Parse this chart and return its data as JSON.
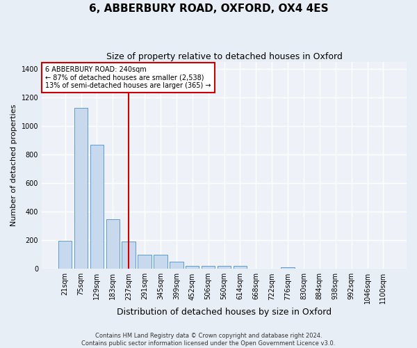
{
  "title": "6, ABBERBURY ROAD, OXFORD, OX4 4ES",
  "subtitle": "Size of property relative to detached houses in Oxford",
  "xlabel": "Distribution of detached houses by size in Oxford",
  "ylabel": "Number of detached properties",
  "categories": [
    "21sqm",
    "75sqm",
    "129sqm",
    "183sqm",
    "237sqm",
    "291sqm",
    "345sqm",
    "399sqm",
    "452sqm",
    "506sqm",
    "560sqm",
    "614sqm",
    "668sqm",
    "722sqm",
    "776sqm",
    "830sqm",
    "884sqm",
    "938sqm",
    "992sqm",
    "1046sqm",
    "1100sqm"
  ],
  "values": [
    195,
    1130,
    870,
    350,
    190,
    100,
    100,
    50,
    20,
    20,
    20,
    20,
    0,
    0,
    10,
    0,
    0,
    0,
    0,
    0,
    0
  ],
  "bar_color": "#c9d9ed",
  "bar_edge_color": "#5b9bd5",
  "vline_x_index": 4,
  "vline_color": "#cc0000",
  "annotation_text": "6 ABBERBURY ROAD: 240sqm\n← 87% of detached houses are smaller (2,538)\n13% of semi-detached houses are larger (365) →",
  "annotation_box_color": "#ffffff",
  "annotation_box_edgecolor": "#cc0000",
  "ylim": [
    0,
    1450
  ],
  "yticks": [
    0,
    200,
    400,
    600,
    800,
    1000,
    1200,
    1400
  ],
  "footer": "Contains HM Land Registry data © Crown copyright and database right 2024.\nContains public sector information licensed under the Open Government Licence v3.0.",
  "background_color": "#e8eef5",
  "plot_background_color": "#eef2f8",
  "grid_color": "#ffffff",
  "title_fontsize": 11,
  "subtitle_fontsize": 9,
  "xlabel_fontsize": 9,
  "ylabel_fontsize": 8,
  "tick_fontsize": 7,
  "footer_fontsize": 6,
  "annotation_fontsize": 7
}
